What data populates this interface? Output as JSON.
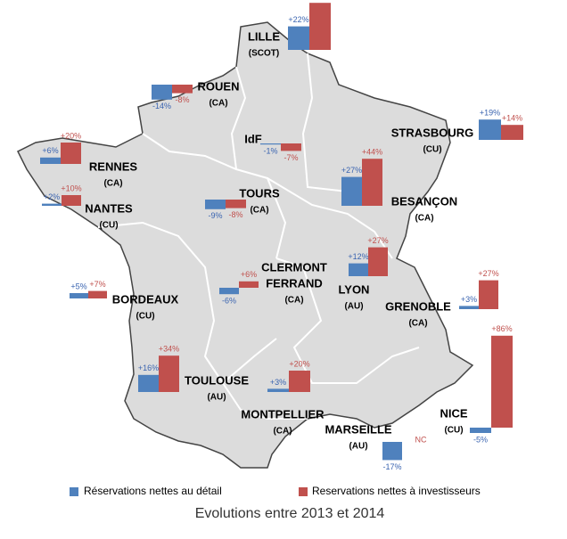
{
  "map": {
    "title": "Evolutions entre 2013 et 2014",
    "legend": [
      {
        "name": "Réservations nettes au détail",
        "color": "#4f81bd"
      },
      {
        "name": "Reservations nettes à investisseurs",
        "color": "#c0504d"
      }
    ],
    "cities": [
      {
        "name_lines": [
          "LILLE"
        ],
        "sub": "(SCOT)",
        "values": [
          22,
          44
        ],
        "value_labels": [
          "+22%",
          null
        ]
      },
      {
        "name_lines": [
          "ROUEN"
        ],
        "sub": "(CA)",
        "values": [
          -14,
          -8
        ],
        "value_labels": [
          "-14%",
          "-8%"
        ]
      },
      {
        "name_lines": [
          "IdF"
        ],
        "values": [
          -1,
          -7
        ],
        "value_labels": [
          "-1%",
          "-7%"
        ]
      },
      {
        "name_lines": [
          "STRASBOURG"
        ],
        "sub": "(CU)",
        "values": [
          19,
          14
        ],
        "value_labels": [
          "+19%",
          "+14%"
        ]
      },
      {
        "name_lines": [
          "RENNES"
        ],
        "sub": "(CA)",
        "values": [
          6,
          20
        ],
        "value_labels": [
          "+6%",
          "+20%"
        ]
      },
      {
        "name_lines": [
          "NANTES"
        ],
        "sub": "(CU)",
        "values": [
          2,
          10
        ],
        "value_labels": [
          "+2%",
          "+10%"
        ]
      },
      {
        "name_lines": [
          "TOURS"
        ],
        "sub": "(CA)",
        "values": [
          -9,
          -8
        ],
        "value_labels": [
          "-9%",
          "-8%"
        ]
      },
      {
        "name_lines": [
          "BESANÇON"
        ],
        "sub": "(CA)",
        "values": [
          27,
          44
        ],
        "value_labels": [
          "+27%",
          "+44%"
        ]
      },
      {
        "name_lines": [
          "LYON"
        ],
        "sub": "(AU)",
        "values": [
          12,
          27
        ],
        "value_labels": [
          "+12%",
          "+27%"
        ]
      },
      {
        "name_lines": [
          "CLERMONT",
          "FERRAND"
        ],
        "sub": "(CA)",
        "values": [
          -6,
          6
        ],
        "value_labels": [
          "-6%",
          "+6%"
        ]
      },
      {
        "name_lines": [
          "GRENOBLE"
        ],
        "sub": "(CA)",
        "values": [
          3,
          27
        ],
        "value_labels": [
          "+3%",
          "+27%"
        ]
      },
      {
        "name_lines": [
          "BORDEAUX"
        ],
        "sub": "(CU)",
        "values": [
          5,
          7
        ],
        "value_labels": [
          "+5%",
          "+7%"
        ]
      },
      {
        "name_lines": [
          "TOULOUSE"
        ],
        "sub": "(AU)",
        "values": [
          16,
          34
        ],
        "value_labels": [
          "+16%",
          "+34%"
        ]
      },
      {
        "name_lines": [
          "MONTPELLIER"
        ],
        "sub": "(CA)",
        "values": [
          3,
          20
        ],
        "value_labels": [
          "+3%",
          "+20%"
        ]
      },
      {
        "name_lines": [
          "MARSEILLE"
        ],
        "sub": "(AU)",
        "values": [
          -17,
          null
        ],
        "value_labels": [
          "-17%",
          "NC"
        ]
      },
      {
        "name_lines": [
          "NICE"
        ],
        "sub": "(CU)",
        "values": [
          -5,
          86
        ],
        "value_labels": [
          "-5%",
          "+86%"
        ]
      }
    ]
  }
}
